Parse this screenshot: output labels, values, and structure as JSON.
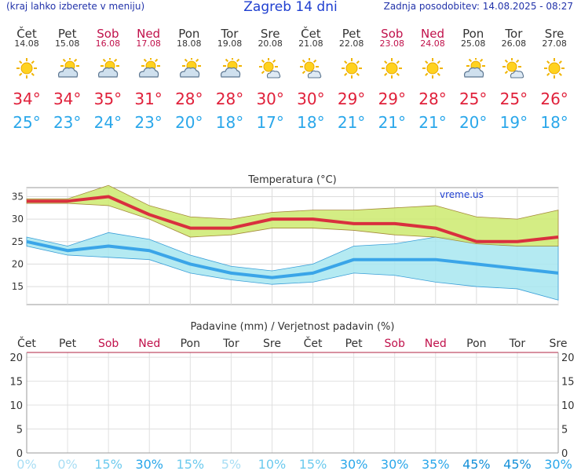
{
  "header": {
    "left": "(kraj lahko izberete v meniju)",
    "title": "Zagreb 14 dni",
    "updated": "Zadnja posodobitev: 14.08.2025 - 08:27"
  },
  "days": [
    {
      "name": "Čet",
      "date": "14.08",
      "weekend": false,
      "icon": "sun-icon",
      "max": "34°",
      "min": "25°"
    },
    {
      "name": "Pet",
      "date": "15.08",
      "weekend": false,
      "icon": "sun-cloud-icon",
      "max": "34°",
      "min": "23°"
    },
    {
      "name": "Sob",
      "date": "16.08",
      "weekend": true,
      "icon": "sun-cloud-icon",
      "max": "35°",
      "min": "24°"
    },
    {
      "name": "Ned",
      "date": "17.08",
      "weekend": true,
      "icon": "sun-cloud-icon",
      "max": "31°",
      "min": "23°"
    },
    {
      "name": "Pon",
      "date": "18.08",
      "weekend": false,
      "icon": "sun-cloud-icon",
      "max": "28°",
      "min": "20°"
    },
    {
      "name": "Tor",
      "date": "19.08",
      "weekend": false,
      "icon": "sun-cloud-icon",
      "max": "28°",
      "min": "18°"
    },
    {
      "name": "Sre",
      "date": "20.08",
      "weekend": false,
      "icon": "sun-small-cloud-icon",
      "max": "30°",
      "min": "17°"
    },
    {
      "name": "Čet",
      "date": "21.08",
      "weekend": false,
      "icon": "sun-small-cloud-icon",
      "max": "30°",
      "min": "18°"
    },
    {
      "name": "Pet",
      "date": "22.08",
      "weekend": false,
      "icon": "sun-icon",
      "max": "29°",
      "min": "21°"
    },
    {
      "name": "Sob",
      "date": "23.08",
      "weekend": true,
      "icon": "sun-icon",
      "max": "29°",
      "min": "21°"
    },
    {
      "name": "Ned",
      "date": "24.08",
      "weekend": true,
      "icon": "sun-icon",
      "max": "28°",
      "min": "21°"
    },
    {
      "name": "Pon",
      "date": "25.08",
      "weekend": false,
      "icon": "sun-cloud-icon",
      "max": "25°",
      "min": "20°"
    },
    {
      "name": "Tor",
      "date": "26.08",
      "weekend": false,
      "icon": "sun-small-cloud-icon",
      "max": "25°",
      "min": "19°"
    },
    {
      "name": "Sre",
      "date": "27.08",
      "weekend": false,
      "icon": "sun-icon",
      "max": "26°",
      "min": "18°"
    }
  ],
  "chart_data": [
    {
      "type": "line",
      "title": "Temperatura (°C)",
      "watermark": "vreme.us",
      "ylim": [
        11,
        37
      ],
      "yticks": [
        15,
        20,
        25,
        30,
        35
      ],
      "x": [
        "14.08",
        "15.08",
        "16.08",
        "17.08",
        "18.08",
        "19.08",
        "20.08",
        "21.08",
        "22.08",
        "23.08",
        "24.08",
        "25.08",
        "26.08",
        "27.08"
      ],
      "series": [
        {
          "name": "max",
          "color": "#d9303e",
          "values": [
            34,
            34,
            35,
            31,
            28,
            28,
            30,
            30,
            29,
            29,
            28,
            25,
            25,
            26
          ]
        },
        {
          "name": "min",
          "color": "#3aa5e8",
          "values": [
            25,
            23,
            24,
            23,
            20,
            18,
            17,
            18,
            21,
            21,
            21,
            20,
            19,
            18
          ]
        }
      ],
      "max_band": {
        "color": "#ccea6e",
        "upper": [
          34.5,
          34.5,
          37.5,
          33,
          30.5,
          30,
          31.5,
          32,
          32,
          32.5,
          33,
          30.5,
          30,
          32
        ],
        "lower": [
          33.5,
          33.5,
          33,
          30,
          26,
          26.5,
          28,
          28,
          27.5,
          26.5,
          26,
          24.5,
          24,
          24
        ]
      },
      "min_band": {
        "color": "#a7e6f0",
        "upper": [
          26,
          24,
          27,
          25.5,
          22,
          19.5,
          18.5,
          20,
          24,
          24.5,
          26,
          25.5,
          24,
          24
        ],
        "lower": [
          24,
          22,
          21.5,
          21,
          18,
          16.5,
          15.5,
          16,
          18,
          17.5,
          16,
          15,
          14.5,
          12
        ]
      },
      "grid": true
    },
    {
      "type": "bar",
      "title": "Padavine (mm) / Verjetnost padavin (%)",
      "ylim": [
        0,
        21
      ],
      "yticks": [
        0,
        5,
        10,
        15,
        20
      ],
      "day_labels": [
        "Čet",
        "Pet",
        "Sob",
        "Ned",
        "Pon",
        "Tor",
        "Sre",
        "Čet",
        "Pet",
        "Sob",
        "Ned",
        "Pon",
        "Tor",
        "Sre"
      ],
      "weekend": [
        false,
        false,
        true,
        true,
        false,
        false,
        false,
        false,
        false,
        true,
        true,
        false,
        false,
        false
      ],
      "values": [
        0,
        0,
        0,
        0,
        0,
        0,
        0,
        0,
        0,
        0,
        0,
        0,
        0,
        0
      ],
      "probability": [
        "0%",
        "0%",
        "15%",
        "30%",
        "15%",
        "5%",
        "10%",
        "15%",
        "30%",
        "30%",
        "35%",
        "45%",
        "45%",
        "30%"
      ],
      "grid": true
    }
  ]
}
